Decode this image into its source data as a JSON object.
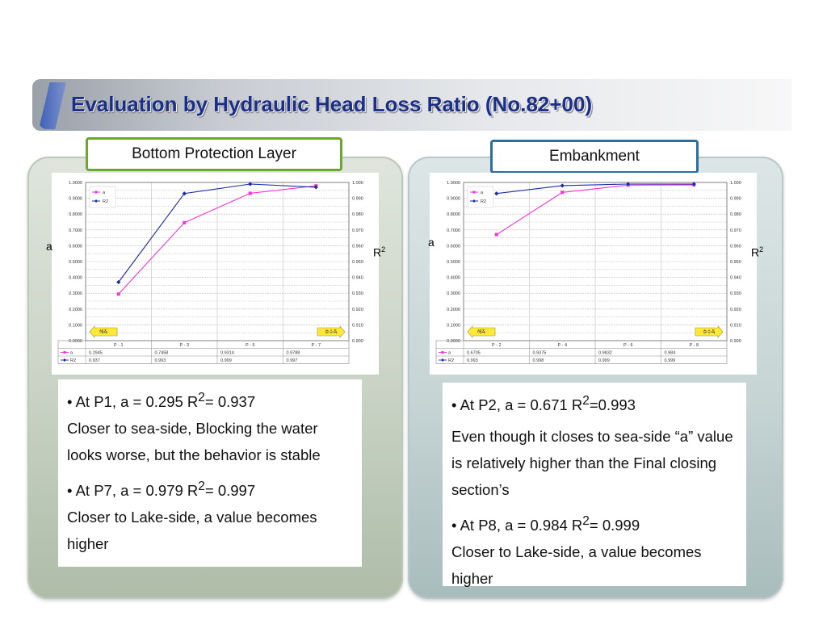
{
  "title": "Evaluation by Hydraulic Head Loss Ratio (No.82+00)",
  "labels": {
    "left": "Bottom Protection Layer",
    "right": "Embankment"
  },
  "axis_labels": {
    "left_a": "a",
    "right_r": "R",
    "sup": "2"
  },
  "badges": {
    "left": "해측",
    "right": "호수측"
  },
  "colors": {
    "a": "#ff2fd6",
    "r2": "#1a2aa8",
    "title": "#1b2f86"
  },
  "chart_data": [
    {
      "type": "line",
      "categories": [
        "P - 1",
        "P - 3",
        "P - 5",
        "P - 7"
      ],
      "series": [
        {
          "name": "a",
          "axis": "left",
          "values": [
            0.2945,
            0.7458,
            0.9314,
            0.9788
          ]
        },
        {
          "name": "R2",
          "axis": "right",
          "values": [
            0.937,
            0.993,
            0.999,
            0.997
          ]
        }
      ],
      "table_rows": [
        {
          "name": "a",
          "cells": [
            "0.2945",
            "0.7458",
            "0.9314",
            "0.9788"
          ]
        },
        {
          "name": "R2",
          "cells": [
            "0.937",
            "0.993",
            "0.999",
            "0.997"
          ]
        }
      ],
      "ylim_left": [
        0,
        1
      ],
      "ylim_right": [
        0.9,
        1
      ],
      "left_ticks": [
        "0.0000",
        "0.1000",
        "0.2000",
        "0.3000",
        "0.4000",
        "0.5000",
        "0.6000",
        "0.7000",
        "0.8000",
        "0.9000",
        "1.0000"
      ],
      "right_ticks": [
        "0.900",
        "0.910",
        "0.920",
        "0.930",
        "0.940",
        "0.950",
        "0.960",
        "0.970",
        "0.980",
        "0.990",
        "1.000"
      ],
      "grid": true,
      "legend": "top-left"
    },
    {
      "type": "line",
      "categories": [
        "P - 2",
        "P - 4",
        "P - 6",
        "P - 8"
      ],
      "series": [
        {
          "name": "a",
          "axis": "left",
          "values": [
            0.6705,
            0.9375,
            0.9832,
            0.984
          ]
        },
        {
          "name": "R2",
          "axis": "right",
          "values": [
            0.993,
            0.998,
            0.999,
            0.999
          ]
        }
      ],
      "table_rows": [
        {
          "name": "a",
          "cells": [
            "0.6705",
            "0.9375",
            "0.9832",
            "0.984"
          ]
        },
        {
          "name": "R2",
          "cells": [
            "0.993",
            "0.998",
            "0.999",
            "0.999"
          ]
        }
      ],
      "ylim_left": [
        0,
        1
      ],
      "ylim_right": [
        0.9,
        1
      ],
      "left_ticks": [
        "0.0000",
        "0.1000",
        "0.2000",
        "0.3000",
        "0.4000",
        "0.5000",
        "0.6000",
        "0.7000",
        "0.8000",
        "0.9000",
        "1.0000"
      ],
      "right_ticks": [
        "0.900",
        "0.910",
        "0.920",
        "0.930",
        "0.940",
        "0.950",
        "0.960",
        "0.970",
        "0.980",
        "0.990",
        "1.000"
      ],
      "grid": true,
      "legend": "top-left"
    }
  ],
  "text_left": {
    "p1_lead": "• At P1, a = 0.295  R",
    "p1_sup": "2",
    "p1_tail": "= 0.937",
    "p1_body": "Closer to sea-side,  Blocking the water looks worse, but the behavior is stable",
    "p2_lead": "• At P7, a = 0.979  R",
    "p2_sup": "2",
    "p2_tail": "= 0.997",
    "p2_body": "Closer to Lake-side, a value becomes higher"
  },
  "text_right": {
    "p1_lead": "• At P2, a = 0.671 R",
    "p1_sup": "2",
    "p1_tail": "=0.993",
    "p1_body": " Even though it closes to sea-side “a” value is relatively higher than the Final closing section’s",
    "p2_lead": "• At P8, a = 0.984  R",
    "p2_sup": "2",
    "p2_tail": "= 0.999",
    "p2_body": "Closer to Lake-side, a value becomes higher"
  }
}
